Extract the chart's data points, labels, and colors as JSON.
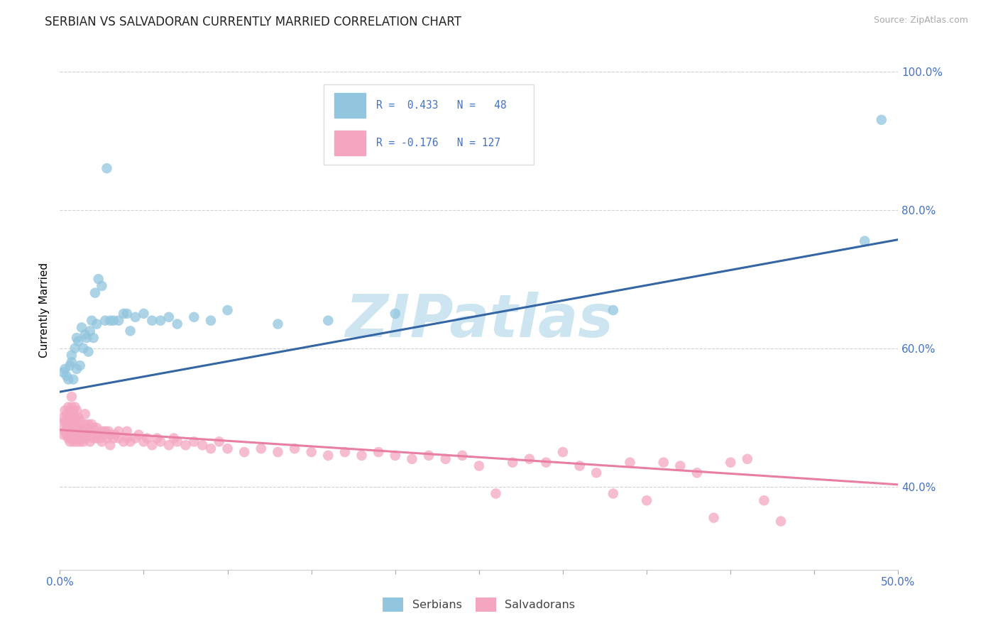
{
  "title": "SERBIAN VS SALVADORAN CURRENTLY MARRIED CORRELATION CHART",
  "source_text": "Source: ZipAtlas.com",
  "ylabel": "Currently Married",
  "xlim": [
    0.0,
    0.5
  ],
  "ylim": [
    0.28,
    1.03
  ],
  "xticks": [
    0.0,
    0.05,
    0.1,
    0.15,
    0.2,
    0.25,
    0.3,
    0.35,
    0.4,
    0.45,
    0.5
  ],
  "xticklabels": [
    "0.0%",
    "",
    "",
    "",
    "",
    "",
    "",
    "",
    "",
    "",
    "50.0%"
  ],
  "yticks": [
    0.4,
    0.6,
    0.8,
    1.0
  ],
  "yticklabels": [
    "40.0%",
    "60.0%",
    "80.0%",
    "100.0%"
  ],
  "serbian_color": "#92c5de",
  "salvadoran_color": "#f4a6c0",
  "serbian_line_color": "#3465a4",
  "salvadoran_line_color": "#e87ea1",
  "watermark": "ZIPatlas",
  "background_color": "#ffffff",
  "grid_color": "#cccccc",
  "title_fontsize": 12,
  "axis_fontsize": 11,
  "tick_fontsize": 11,
  "watermark_color": "#cce5f0",
  "watermark_fontsize": 60,
  "serbian_x": [
    0.002,
    0.003,
    0.004,
    0.005,
    0.006,
    0.007,
    0.007,
    0.008,
    0.009,
    0.01,
    0.01,
    0.011,
    0.012,
    0.013,
    0.014,
    0.015,
    0.016,
    0.017,
    0.018,
    0.019,
    0.02,
    0.021,
    0.022,
    0.023,
    0.025,
    0.027,
    0.028,
    0.03,
    0.032,
    0.035,
    0.038,
    0.04,
    0.042,
    0.045,
    0.05,
    0.055,
    0.06,
    0.065,
    0.07,
    0.08,
    0.09,
    0.1,
    0.13,
    0.16,
    0.2,
    0.33,
    0.48,
    0.49
  ],
  "serbian_y": [
    0.565,
    0.57,
    0.56,
    0.555,
    0.575,
    0.58,
    0.59,
    0.555,
    0.6,
    0.57,
    0.615,
    0.61,
    0.575,
    0.63,
    0.6,
    0.62,
    0.615,
    0.595,
    0.625,
    0.64,
    0.615,
    0.68,
    0.635,
    0.7,
    0.69,
    0.64,
    0.86,
    0.64,
    0.64,
    0.64,
    0.65,
    0.65,
    0.625,
    0.645,
    0.65,
    0.64,
    0.64,
    0.645,
    0.635,
    0.645,
    0.64,
    0.655,
    0.635,
    0.64,
    0.65,
    0.655,
    0.755,
    0.93
  ],
  "salvadoran_x": [
    0.001,
    0.002,
    0.002,
    0.003,
    0.003,
    0.003,
    0.004,
    0.004,
    0.004,
    0.005,
    0.005,
    0.005,
    0.005,
    0.006,
    0.006,
    0.006,
    0.006,
    0.007,
    0.007,
    0.007,
    0.007,
    0.007,
    0.008,
    0.008,
    0.008,
    0.008,
    0.009,
    0.009,
    0.009,
    0.009,
    0.01,
    0.01,
    0.01,
    0.01,
    0.011,
    0.011,
    0.011,
    0.012,
    0.012,
    0.012,
    0.013,
    0.013,
    0.014,
    0.014,
    0.015,
    0.015,
    0.015,
    0.016,
    0.016,
    0.017,
    0.017,
    0.018,
    0.018,
    0.019,
    0.019,
    0.02,
    0.02,
    0.021,
    0.022,
    0.022,
    0.023,
    0.024,
    0.025,
    0.025,
    0.026,
    0.027,
    0.028,
    0.029,
    0.03,
    0.03,
    0.032,
    0.033,
    0.035,
    0.035,
    0.038,
    0.04,
    0.04,
    0.042,
    0.045,
    0.047,
    0.05,
    0.052,
    0.055,
    0.058,
    0.06,
    0.065,
    0.068,
    0.07,
    0.075,
    0.08,
    0.085,
    0.09,
    0.095,
    0.1,
    0.11,
    0.12,
    0.13,
    0.14,
    0.15,
    0.16,
    0.17,
    0.18,
    0.19,
    0.2,
    0.21,
    0.22,
    0.23,
    0.24,
    0.25,
    0.26,
    0.27,
    0.28,
    0.29,
    0.3,
    0.31,
    0.32,
    0.33,
    0.34,
    0.35,
    0.36,
    0.37,
    0.38,
    0.39,
    0.4,
    0.41,
    0.42,
    0.43
  ],
  "salvadoran_y": [
    0.49,
    0.475,
    0.5,
    0.48,
    0.495,
    0.51,
    0.475,
    0.49,
    0.505,
    0.47,
    0.485,
    0.5,
    0.515,
    0.465,
    0.48,
    0.495,
    0.51,
    0.47,
    0.485,
    0.5,
    0.515,
    0.53,
    0.465,
    0.48,
    0.495,
    0.51,
    0.47,
    0.485,
    0.5,
    0.515,
    0.465,
    0.48,
    0.495,
    0.51,
    0.47,
    0.485,
    0.5,
    0.465,
    0.48,
    0.495,
    0.47,
    0.485,
    0.465,
    0.48,
    0.475,
    0.49,
    0.505,
    0.47,
    0.485,
    0.475,
    0.49,
    0.465,
    0.48,
    0.475,
    0.49,
    0.47,
    0.485,
    0.475,
    0.47,
    0.485,
    0.475,
    0.47,
    0.48,
    0.465,
    0.475,
    0.48,
    0.47,
    0.48,
    0.475,
    0.46,
    0.47,
    0.475,
    0.47,
    0.48,
    0.465,
    0.47,
    0.48,
    0.465,
    0.47,
    0.475,
    0.465,
    0.47,
    0.46,
    0.47,
    0.465,
    0.46,
    0.47,
    0.465,
    0.46,
    0.465,
    0.46,
    0.455,
    0.465,
    0.455,
    0.45,
    0.455,
    0.45,
    0.455,
    0.45,
    0.445,
    0.45,
    0.445,
    0.45,
    0.445,
    0.44,
    0.445,
    0.44,
    0.445,
    0.43,
    0.39,
    0.435,
    0.44,
    0.435,
    0.45,
    0.43,
    0.42,
    0.39,
    0.435,
    0.38,
    0.435,
    0.43,
    0.42,
    0.355,
    0.435,
    0.44,
    0.38,
    0.35
  ],
  "serb_line_x0": 0.0,
  "serb_line_y0": 0.537,
  "serb_line_x1": 0.5,
  "serb_line_y1": 0.757,
  "salv_line_x0": 0.0,
  "salv_line_y0": 0.482,
  "salv_line_x1": 0.5,
  "salv_line_y1": 0.403
}
